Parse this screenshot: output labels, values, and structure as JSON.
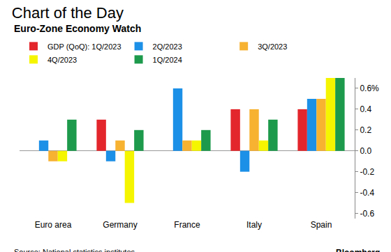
{
  "chart_data": {
    "type": "bar",
    "title": "Chart of the Day",
    "subtitle": "Euro-Zone Economy Watch",
    "categories": [
      "Euro area",
      "Germany",
      "France",
      "Italy",
      "Spain"
    ],
    "series": [
      {
        "name": "GDP (QoQ): 1Q/2023",
        "color": "#e3262b",
        "values": [
          0.0,
          0.3,
          0.0,
          0.4,
          0.4
        ]
      },
      {
        "name": "2Q/2023",
        "color": "#1c8fe6",
        "values": [
          0.1,
          -0.1,
          0.6,
          -0.2,
          0.5
        ]
      },
      {
        "name": "3Q/2023",
        "color": "#f8b232",
        "values": [
          -0.1,
          0.1,
          0.1,
          0.4,
          0.5
        ]
      },
      {
        "name": "4Q/2023",
        "color": "#f5f500",
        "values": [
          -0.1,
          -0.5,
          0.1,
          0.1,
          0.7
        ]
      },
      {
        "name": "1Q/2024",
        "color": "#1d9a4b",
        "values": [
          0.3,
          0.2,
          0.2,
          0.3,
          0.7
        ]
      }
    ],
    "ylim": [
      -0.65,
      0.7
    ],
    "yticks": [
      {
        "value": 0.6,
        "label": "0.6%"
      },
      0.4,
      0.2,
      {
        "value": 0,
        "label": "0.0"
      },
      -0.2,
      -0.4,
      -0.6
    ],
    "grid": false,
    "legend": "top-left",
    "annotations": [
      "Source: National statistics institutes",
      "Bloomberg"
    ]
  }
}
